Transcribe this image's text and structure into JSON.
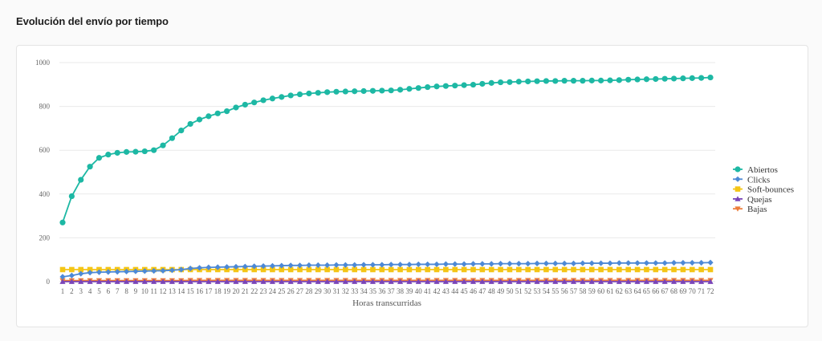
{
  "page": {
    "title": "Evolución del envío por tiempo"
  },
  "colors": {
    "abiertos": "#1db8a4",
    "clicks": "#4d89d6",
    "softbounces": "#f4c515",
    "quejas": "#7a45b8",
    "bajas": "#ed7d3a",
    "grid": "#e9e9e9"
  },
  "chart_data": {
    "type": "line",
    "title": "",
    "xlabel": "Horas transcurridas",
    "ylabel": "",
    "x": [
      1,
      2,
      3,
      4,
      5,
      6,
      7,
      8,
      9,
      10,
      11,
      12,
      13,
      14,
      15,
      16,
      17,
      18,
      19,
      20,
      21,
      22,
      23,
      24,
      25,
      26,
      27,
      28,
      29,
      30,
      31,
      32,
      33,
      34,
      35,
      36,
      37,
      38,
      39,
      40,
      41,
      42,
      43,
      44,
      45,
      46,
      47,
      48,
      49,
      50,
      51,
      52,
      53,
      54,
      55,
      56,
      57,
      58,
      59,
      60,
      61,
      62,
      63,
      64,
      65,
      66,
      67,
      68,
      69,
      70,
      71,
      72
    ],
    "ylim": [
      0,
      1000
    ],
    "yticks": [
      0,
      200,
      400,
      600,
      800,
      1000
    ],
    "grid": true,
    "legend_position": "right",
    "series": [
      {
        "name": "Abiertos",
        "color_key": "abiertos",
        "marker": "circle",
        "values": [
          270,
          390,
          465,
          525,
          565,
          580,
          588,
          592,
          593,
          595,
          600,
          622,
          655,
          690,
          720,
          740,
          755,
          768,
          778,
          795,
          808,
          818,
          828,
          836,
          843,
          850,
          855,
          859,
          862,
          865,
          867,
          868,
          869,
          870,
          871,
          872,
          873,
          876,
          880,
          884,
          888,
          891,
          893,
          895,
          897,
          899,
          903,
          907,
          910,
          911,
          913,
          914,
          915,
          916,
          916,
          917,
          917,
          917,
          918,
          918,
          919,
          920,
          922,
          923,
          924,
          925,
          926,
          927,
          928,
          929,
          930,
          932
        ]
      },
      {
        "name": "Clicks",
        "color_key": "clicks",
        "marker": "diamond",
        "values": [
          22,
          28,
          36,
          41,
          43,
          44,
          45,
          46,
          47,
          48,
          49,
          50,
          52,
          55,
          60,
          63,
          65,
          66,
          67,
          68,
          69,
          70,
          71,
          72,
          73,
          74,
          74,
          75,
          75,
          75,
          76,
          76,
          76,
          77,
          77,
          77,
          78,
          78,
          78,
          79,
          79,
          79,
          80,
          80,
          80,
          81,
          81,
          81,
          82,
          82,
          82,
          82,
          83,
          83,
          83,
          83,
          83,
          84,
          84,
          84,
          84,
          85,
          85,
          85,
          85,
          85,
          85,
          86,
          86,
          86,
          86,
          87
        ]
      },
      {
        "name": "Soft-bounces",
        "color_key": "softbounces",
        "marker": "square",
        "values": [
          55,
          55,
          55,
          55,
          55,
          55,
          55,
          55,
          55,
          55,
          55,
          55,
          55,
          55,
          55,
          55,
          55,
          55,
          55,
          55,
          55,
          55,
          55,
          55,
          55,
          55,
          55,
          55,
          55,
          55,
          55,
          55,
          55,
          55,
          55,
          55,
          55,
          55,
          55,
          55,
          55,
          55,
          55,
          55,
          55,
          55,
          55,
          55,
          55,
          55,
          55,
          55,
          55,
          55,
          55,
          55,
          55,
          55,
          55,
          55,
          55,
          55,
          55,
          55,
          55,
          55,
          55,
          55,
          55,
          55,
          55,
          55
        ]
      },
      {
        "name": "Quejas",
        "color_key": "quejas",
        "marker": "triangle",
        "values": [
          0,
          0,
          0,
          0,
          0,
          0,
          0,
          0,
          0,
          0,
          0,
          0,
          0,
          0,
          0,
          0,
          0,
          0,
          0,
          0,
          0,
          0,
          0,
          0,
          0,
          0,
          0,
          0,
          0,
          0,
          0,
          0,
          0,
          0,
          0,
          0,
          0,
          0,
          0,
          0,
          0,
          0,
          0,
          0,
          0,
          0,
          0,
          0,
          0,
          0,
          0,
          0,
          0,
          0,
          0,
          0,
          0,
          0,
          0,
          0,
          0,
          0,
          0,
          0,
          0,
          0,
          0,
          0,
          0,
          0,
          0,
          0
        ]
      },
      {
        "name": "Bajas",
        "color_key": "bajas",
        "marker": "triangle-down",
        "values": [
          5,
          5,
          5,
          5,
          5,
          5,
          5,
          5,
          5,
          5,
          5,
          5,
          5,
          5,
          6,
          6,
          6,
          6,
          6,
          6,
          6,
          6,
          6,
          6,
          6,
          6,
          6,
          6,
          6,
          6,
          6,
          6,
          6,
          6,
          6,
          6,
          6,
          6,
          6,
          6,
          6,
          6,
          6,
          6,
          6,
          6,
          6,
          6,
          6,
          6,
          6,
          6,
          6,
          6,
          6,
          6,
          6,
          6,
          6,
          6,
          6,
          6,
          6,
          6,
          6,
          6,
          6,
          6,
          6,
          6,
          6,
          6
        ]
      }
    ]
  }
}
